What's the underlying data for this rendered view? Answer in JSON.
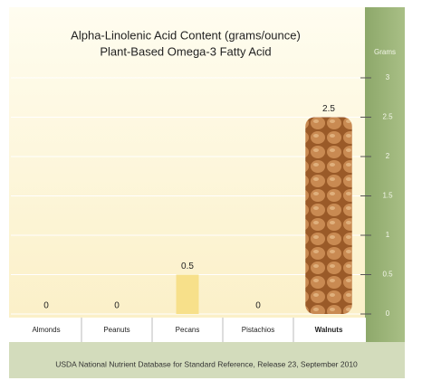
{
  "chart_data": {
    "type": "bar",
    "title": "Alpha-Linolenic Acid Content (grams/ounce)",
    "subtitle": "Plant-Based Omega-3 Fatty Acid",
    "y_label": "Grams",
    "categories": [
      "Almonds",
      "Peanuts",
      "Pecans",
      "Pistachios",
      "Walnuts"
    ],
    "values": [
      0,
      0,
      0.5,
      0,
      2.5
    ],
    "colors": [
      "#f7e08a",
      "#f7e08a",
      "#f7e08a",
      "#f7e08a",
      "#a8652e"
    ],
    "ylim": [
      0,
      3
    ],
    "yticks": [
      0,
      0.5,
      1,
      1.5,
      2,
      2.5,
      3
    ],
    "grid": true,
    "source": "USDA National Nutrient Database for Standard Reference, Release 23, September 2010"
  }
}
